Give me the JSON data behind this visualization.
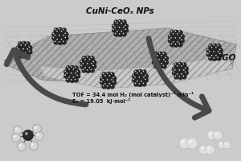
{
  "bg_color": "#cbcbcb",
  "tof_line1": "TOF = 34.4 mol H₂ (mol catalyst)⁻¹ min⁻¹",
  "tof_line2": "Eₐ = 19.05  kJ·mol⁻¹",
  "label_rgo": "rGO",
  "label_np": "CuNi-CeOₓ NPs",
  "arrow_color": "#4a4a4a",
  "text_color": "#111111",
  "text_fontsize": 4.8,
  "label_fontsize": 7.5
}
